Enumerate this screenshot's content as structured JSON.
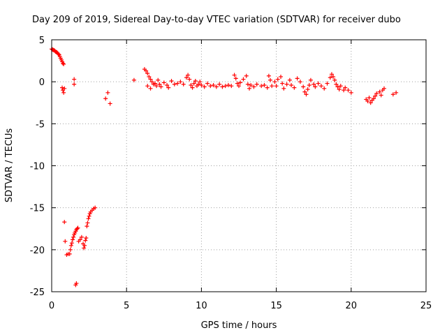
{
  "chart_data": {
    "type": "scatter",
    "title": "Day 209 of 2019, Sidereal Day-to-day VTEC variation (SDTVAR) for receiver dubo",
    "xlabel": "GPS time / hours",
    "ylabel": "SDTVAR / TECUs",
    "xlim": [
      0,
      25
    ],
    "ylim": [
      -25,
      5
    ],
    "xticks": [
      0,
      5,
      10,
      15,
      20,
      25
    ],
    "yticks": [
      -25,
      -20,
      -15,
      -10,
      -5,
      0,
      5
    ],
    "xtick_labels": [
      "0",
      "5",
      "10",
      "15",
      "20",
      "25"
    ],
    "ytick_labels": [
      "-25",
      "-20",
      "-15",
      "-10",
      "-5",
      "0",
      "5"
    ],
    "grid": true,
    "marker": "plus",
    "color": "#ff0000",
    "series": [
      {
        "name": "SDTVAR",
        "points": [
          [
            0.0,
            3.9
          ],
          [
            0.05,
            3.85
          ],
          [
            0.1,
            3.8
          ],
          [
            0.15,
            3.75
          ],
          [
            0.2,
            3.7
          ],
          [
            0.25,
            3.6
          ],
          [
            0.3,
            3.55
          ],
          [
            0.35,
            3.5
          ],
          [
            0.4,
            3.4
          ],
          [
            0.45,
            3.3
          ],
          [
            0.5,
            3.2
          ],
          [
            0.55,
            3.0
          ],
          [
            0.6,
            2.8
          ],
          [
            0.65,
            2.6
          ],
          [
            0.7,
            2.4
          ],
          [
            0.75,
            2.2
          ],
          [
            0.8,
            2.1
          ],
          [
            0.7,
            -0.7
          ],
          [
            0.75,
            -1.0
          ],
          [
            0.8,
            -1.3
          ],
          [
            0.85,
            -0.8
          ],
          [
            0.85,
            -16.7
          ],
          [
            0.9,
            -19.0
          ],
          [
            1.0,
            -20.6
          ],
          [
            1.1,
            -20.5
          ],
          [
            1.2,
            -20.5
          ],
          [
            1.25,
            -20.0
          ],
          [
            1.3,
            -19.5
          ],
          [
            1.35,
            -19.2
          ],
          [
            1.4,
            -18.8
          ],
          [
            1.45,
            -18.5
          ],
          [
            1.5,
            -18.2
          ],
          [
            1.55,
            -18.0
          ],
          [
            1.6,
            -17.8
          ],
          [
            1.65,
            -17.6
          ],
          [
            1.7,
            -17.5
          ],
          [
            1.75,
            -17.4
          ],
          [
            1.6,
            -24.2
          ],
          [
            1.65,
            -24.0
          ],
          [
            1.5,
            0.3
          ],
          [
            1.5,
            -0.3
          ],
          [
            1.8,
            -19.0
          ],
          [
            1.9,
            -18.8
          ],
          [
            2.0,
            -18.5
          ],
          [
            2.1,
            -19.3
          ],
          [
            2.15,
            -19.8
          ],
          [
            2.2,
            -19.5
          ],
          [
            2.25,
            -18.9
          ],
          [
            2.3,
            -18.6
          ],
          [
            2.35,
            -17.2
          ],
          [
            2.4,
            -16.8
          ],
          [
            2.45,
            -16.3
          ],
          [
            2.5,
            -16.0
          ],
          [
            2.55,
            -15.7
          ],
          [
            2.6,
            -15.5
          ],
          [
            2.7,
            -15.3
          ],
          [
            2.8,
            -15.1
          ],
          [
            2.9,
            -15.0
          ],
          [
            3.6,
            -2.0
          ],
          [
            3.75,
            -1.3
          ],
          [
            3.9,
            -2.6
          ],
          [
            5.5,
            0.2
          ],
          [
            6.2,
            1.5
          ],
          [
            6.3,
            1.3
          ],
          [
            6.4,
            1.0
          ],
          [
            6.5,
            0.6
          ],
          [
            6.6,
            0.3
          ],
          [
            6.7,
            0.0
          ],
          [
            6.4,
            -0.5
          ],
          [
            6.6,
            -0.8
          ],
          [
            6.8,
            -0.3
          ],
          [
            6.9,
            -0.2
          ],
          [
            7.0,
            -0.5
          ],
          [
            7.1,
            0.2
          ],
          [
            7.2,
            -0.3
          ],
          [
            7.3,
            -0.6
          ],
          [
            7.5,
            -0.1
          ],
          [
            7.7,
            -0.4
          ],
          [
            7.8,
            -0.7
          ],
          [
            8.0,
            0.1
          ],
          [
            8.2,
            -0.3
          ],
          [
            8.4,
            -0.2
          ],
          [
            8.6,
            0.0
          ],
          [
            8.8,
            -0.3
          ],
          [
            9.0,
            0.5
          ],
          [
            9.1,
            0.8
          ],
          [
            9.2,
            0.3
          ],
          [
            9.3,
            -0.4
          ],
          [
            9.4,
            -0.7
          ],
          [
            9.5,
            -0.2
          ],
          [
            9.6,
            0.1
          ],
          [
            9.7,
            -0.5
          ],
          [
            9.8,
            -0.3
          ],
          [
            9.9,
            0.0
          ],
          [
            10.0,
            -0.4
          ],
          [
            10.2,
            -0.6
          ],
          [
            10.4,
            -0.2
          ],
          [
            10.6,
            -0.5
          ],
          [
            10.8,
            -0.4
          ],
          [
            11.0,
            -0.6
          ],
          [
            11.2,
            -0.3
          ],
          [
            11.4,
            -0.6
          ],
          [
            11.6,
            -0.5
          ],
          [
            11.8,
            -0.4
          ],
          [
            12.0,
            -0.5
          ],
          [
            12.2,
            0.8
          ],
          [
            12.3,
            0.4
          ],
          [
            12.4,
            -0.2
          ],
          [
            12.5,
            -0.5
          ],
          [
            12.6,
            -0.1
          ],
          [
            12.8,
            0.3
          ],
          [
            13.0,
            0.7
          ],
          [
            13.1,
            -0.3
          ],
          [
            13.2,
            -0.8
          ],
          [
            13.3,
            -0.4
          ],
          [
            13.5,
            -0.6
          ],
          [
            13.7,
            -0.3
          ],
          [
            14.0,
            -0.5
          ],
          [
            14.2,
            -0.4
          ],
          [
            14.4,
            -0.7
          ],
          [
            14.5,
            0.7
          ],
          [
            14.6,
            0.2
          ],
          [
            14.7,
            -0.5
          ],
          [
            14.9,
            0.0
          ],
          [
            15.0,
            -0.5
          ],
          [
            15.1,
            0.3
          ],
          [
            15.3,
            0.6
          ],
          [
            15.4,
            -0.2
          ],
          [
            15.5,
            -0.8
          ],
          [
            15.7,
            -0.3
          ],
          [
            15.9,
            0.2
          ],
          [
            16.0,
            -0.4
          ],
          [
            16.2,
            -0.7
          ],
          [
            16.4,
            0.4
          ],
          [
            16.6,
            0.0
          ],
          [
            16.8,
            -0.6
          ],
          [
            16.9,
            -1.2
          ],
          [
            17.0,
            -1.5
          ],
          [
            17.1,
            -0.9
          ],
          [
            17.2,
            -0.4
          ],
          [
            17.3,
            0.2
          ],
          [
            17.5,
            -0.3
          ],
          [
            17.6,
            -0.6
          ],
          [
            17.8,
            -0.2
          ],
          [
            18.0,
            -0.5
          ],
          [
            18.2,
            -0.8
          ],
          [
            18.4,
            -0.2
          ],
          [
            18.6,
            0.5
          ],
          [
            18.7,
            0.9
          ],
          [
            18.8,
            0.6
          ],
          [
            18.9,
            0.2
          ],
          [
            19.0,
            -0.3
          ],
          [
            19.1,
            -0.6
          ],
          [
            19.2,
            -0.9
          ],
          [
            19.3,
            -0.5
          ],
          [
            19.5,
            -1.0
          ],
          [
            19.6,
            -0.7
          ],
          [
            19.8,
            -1.0
          ],
          [
            20.0,
            -1.3
          ],
          [
            21.0,
            -2.1
          ],
          [
            21.1,
            -2.3
          ],
          [
            21.2,
            -1.9
          ],
          [
            21.3,
            -2.5
          ],
          [
            21.4,
            -2.2
          ],
          [
            21.5,
            -2.0
          ],
          [
            21.6,
            -1.7
          ],
          [
            21.7,
            -1.4
          ],
          [
            21.9,
            -1.2
          ],
          [
            22.0,
            -1.6
          ],
          [
            22.1,
            -1.0
          ],
          [
            22.2,
            -0.8
          ],
          [
            22.8,
            -1.5
          ],
          [
            23.0,
            -1.3
          ]
        ]
      }
    ]
  }
}
